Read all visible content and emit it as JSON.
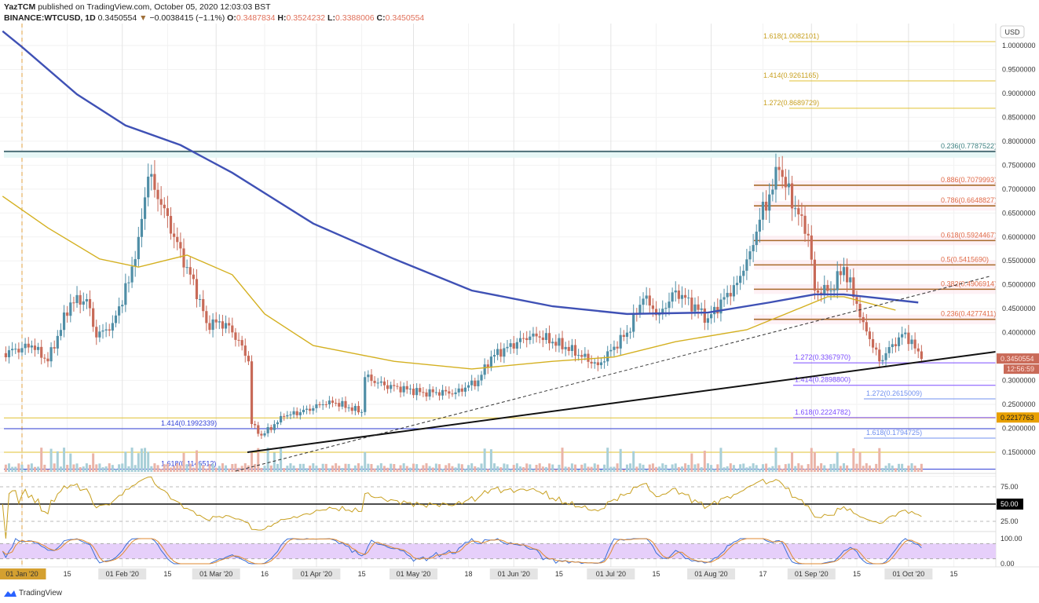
{
  "header": {
    "publisher": "YazTCM",
    "published_text": "published on TradingView.com, October 05, 2020 12:03:03 BST",
    "symbol": "BINANCE:WTCUSD, 1D",
    "last": "0.3450554",
    "change": "−0.0038415 (−1.1%)",
    "change_direction": "down",
    "o_label": "O:",
    "o": "0.3487834",
    "h_label": "H:",
    "h": "0.3524232",
    "l_label": "L:",
    "l": "0.3388006",
    "c_label": "C:",
    "c": "0.3450554"
  },
  "currency": "USD",
  "brand": "TradingView",
  "colors": {
    "up": "#4f8ea6",
    "down": "#c86a58",
    "ma_long": "#3f51b5",
    "ma_short": "#d4b020",
    "fib_gold": "#e0c030",
    "fib_brown": "#a86a2a",
    "fib_label": "#e06a48",
    "purple": "#7c4dff",
    "light_blue": "#7090f0",
    "blue": "#3342d8",
    "teal": "#4d7078",
    "rsi": "#c8a020",
    "stoch_k": "#3a6fd8",
    "stoch_d": "#e08a30",
    "stoch_band": "#e6cffa"
  },
  "chart_data": {
    "type": "candlestick",
    "title": "",
    "ylim": [
      0.1,
      1.05
    ],
    "y_ticks": [
      "1.0000000",
      "0.9500000",
      "0.9000000",
      "0.8500000",
      "0.8000000",
      "0.7500000",
      "0.7000000",
      "0.6500000",
      "0.6000000",
      "0.5500000",
      "0.5000000",
      "0.4500000",
      "0.4000000",
      "0.3000000",
      "0.2500000",
      "0.2000000",
      "0.1500000"
    ],
    "x_ticks": [
      [
        "2020-01-01",
        "01 Jan '20"
      ],
      [
        "2020-01-15",
        "15"
      ],
      [
        "2020-02-01",
        "01 Feb '20"
      ],
      [
        "2020-02-15",
        "15"
      ],
      [
        "2020-03-01",
        "01 Mar '20"
      ],
      [
        "2020-03-16",
        "16"
      ],
      [
        "2020-04-01",
        "01 Apr '20"
      ],
      [
        "2020-04-15",
        "15"
      ],
      [
        "2020-05-01",
        "01 May '20"
      ],
      [
        "2020-05-18",
        "18"
      ],
      [
        "2020-06-01",
        "01 Jun '20"
      ],
      [
        "2020-06-15",
        "15"
      ],
      [
        "2020-07-01",
        "01 Jul '20"
      ],
      [
        "2020-07-15",
        "15"
      ],
      [
        "2020-08-01",
        "01 Aug '20"
      ],
      [
        "2020-08-17",
        "17"
      ],
      [
        "2020-09-01",
        "01 Sep '20"
      ],
      [
        "2020-09-15",
        "15"
      ],
      [
        "2020-10-01",
        "01 Oct '20"
      ],
      [
        "2020-10-15",
        "15"
      ]
    ],
    "close_keypoints": [
      [
        "2019-12-26",
        0.357
      ],
      [
        "2020-01-04",
        0.373
      ],
      [
        "2020-01-09",
        0.34
      ],
      [
        "2020-01-16",
        0.463
      ],
      [
        "2020-01-21",
        0.47
      ],
      [
        "2020-01-24",
        0.39
      ],
      [
        "2020-01-29",
        0.42
      ],
      [
        "2020-02-03",
        0.505
      ],
      [
        "2020-02-06",
        0.6
      ],
      [
        "2020-02-09",
        0.726
      ],
      [
        "2020-02-14",
        0.66
      ],
      [
        "2020-02-17",
        0.6
      ],
      [
        "2020-02-21",
        0.537
      ],
      [
        "2020-02-25",
        0.47
      ],
      [
        "2020-02-27",
        0.42
      ],
      [
        "2020-03-04",
        0.42
      ],
      [
        "2020-03-09",
        0.373
      ],
      [
        "2020-03-11",
        0.34
      ],
      [
        "2020-03-12",
        0.209
      ],
      [
        "2020-03-15",
        0.185
      ],
      [
        "2020-03-22",
        0.225
      ],
      [
        "2020-03-31",
        0.242
      ],
      [
        "2020-04-05",
        0.258
      ],
      [
        "2020-04-15",
        0.234
      ],
      [
        "2020-04-16",
        0.307
      ],
      [
        "2020-04-22",
        0.29
      ],
      [
        "2020-05-04",
        0.275
      ],
      [
        "2020-05-14",
        0.275
      ],
      [
        "2020-05-21",
        0.3
      ],
      [
        "2020-05-25",
        0.35
      ],
      [
        "2020-06-07",
        0.398
      ],
      [
        "2020-06-17",
        0.37
      ],
      [
        "2020-06-27",
        0.332
      ],
      [
        "2020-07-06",
        0.4
      ],
      [
        "2020-07-11",
        0.471
      ],
      [
        "2020-07-16",
        0.438
      ],
      [
        "2020-07-21",
        0.488
      ],
      [
        "2020-07-31",
        0.43
      ],
      [
        "2020-08-09",
        0.504
      ],
      [
        "2020-08-13",
        0.57
      ],
      [
        "2020-08-16",
        0.636
      ],
      [
        "2020-08-22",
        0.74
      ],
      [
        "2020-08-27",
        0.66
      ],
      [
        "2020-08-31",
        0.603
      ],
      [
        "2020-09-02",
        0.488
      ],
      [
        "2020-09-07",
        0.488
      ],
      [
        "2020-09-11",
        0.537
      ],
      [
        "2020-09-17",
        0.422
      ],
      [
        "2020-09-22",
        0.34
      ],
      [
        "2020-09-28",
        0.39
      ],
      [
        "2020-09-30",
        0.4
      ],
      [
        "2020-10-05",
        0.345
      ]
    ],
    "ma_long": [
      [
        "2019-12-26",
        1.03
      ],
      [
        "2020-01-01",
        0.997
      ],
      [
        "2020-01-18",
        0.898
      ],
      [
        "2020-02-02",
        0.833
      ],
      [
        "2020-02-19",
        0.792
      ],
      [
        "2020-03-06",
        0.734
      ],
      [
        "2020-03-31",
        0.628
      ],
      [
        "2020-04-25",
        0.554
      ],
      [
        "2020-05-19",
        0.488
      ],
      [
        "2020-06-13",
        0.455
      ],
      [
        "2020-07-06",
        0.439
      ],
      [
        "2020-07-31",
        0.442
      ],
      [
        "2020-08-19",
        0.463
      ],
      [
        "2020-09-02",
        0.48
      ],
      [
        "2020-09-11",
        0.48
      ],
      [
        "2020-10-04",
        0.463
      ]
    ],
    "ma_short": [
      [
        "2019-12-26",
        0.685
      ],
      [
        "2020-01-09",
        0.619
      ],
      [
        "2020-01-25",
        0.554
      ],
      [
        "2020-02-06",
        0.537
      ],
      [
        "2020-02-21",
        0.562
      ],
      [
        "2020-03-06",
        0.521
      ],
      [
        "2020-03-16",
        0.439
      ],
      [
        "2020-03-31",
        0.373
      ],
      [
        "2020-04-25",
        0.34
      ],
      [
        "2020-05-19",
        0.324
      ],
      [
        "2020-06-13",
        0.34
      ],
      [
        "2020-07-02",
        0.349
      ],
      [
        "2020-07-21",
        0.381
      ],
      [
        "2020-08-12",
        0.406
      ],
      [
        "2020-08-24",
        0.439
      ],
      [
        "2020-09-06",
        0.475
      ],
      [
        "2020-09-11",
        0.475
      ],
      [
        "2020-09-27",
        0.447
      ]
    ],
    "fib_levels": [
      {
        "label": "1.618(1.0082101)",
        "value": 1.0082101,
        "color": "gold"
      },
      {
        "label": "1.414(0.9261165)",
        "value": 0.9261165,
        "color": "gold"
      },
      {
        "label": "1.272(0.8689729)",
        "value": 0.8689729,
        "color": "gold"
      },
      {
        "label": "0.236(0.7787522)",
        "value": 0.7787522,
        "color": "teal"
      },
      {
        "label": "0.886(0.7079993)",
        "value": 0.7079993,
        "color": "brown"
      },
      {
        "label": "0.786(0.6648827)",
        "value": 0.6648827,
        "color": "brown"
      },
      {
        "label": "0.618(0.5924467)",
        "value": 0.5924467,
        "color": "brown"
      },
      {
        "label": "0.5(0.5415690)",
        "value": 0.541569,
        "color": "brown"
      },
      {
        "label": "0.382(0.4906914)",
        "value": 0.4906914,
        "color": "brown"
      },
      {
        "label": "0.236(0.4277411)",
        "value": 0.4277411,
        "color": "brown"
      },
      {
        "label": "1.272(0.3367970)",
        "value": 0.336797,
        "color": "purple"
      },
      {
        "label": "1.414(0.2898800)",
        "value": 0.28988,
        "color": "purple"
      },
      {
        "label": "1.272(0.2615009)",
        "value": 0.2615009,
        "color": "light_blue"
      },
      {
        "label": "1.618(0.2224782)",
        "value": 0.2224782,
        "color": "purple"
      },
      {
        "label": "1.414(0.1992339)",
        "value": 0.1992339,
        "color": "blue"
      },
      {
        "label": "1.618(0.1794725)",
        "value": 0.1794725,
        "color": "light_blue"
      },
      {
        "label": "1.618(0.1146512)",
        "value": 0.1146512,
        "color": "blue"
      }
    ],
    "price_label": "0.3450554",
    "countdown": "12:56:59",
    "marker_label": "0.2217763",
    "rsi_ticks": [
      "75.00",
      "50.00",
      "25.00"
    ],
    "stoch_ticks": [
      "100.00",
      "0.00"
    ]
  }
}
